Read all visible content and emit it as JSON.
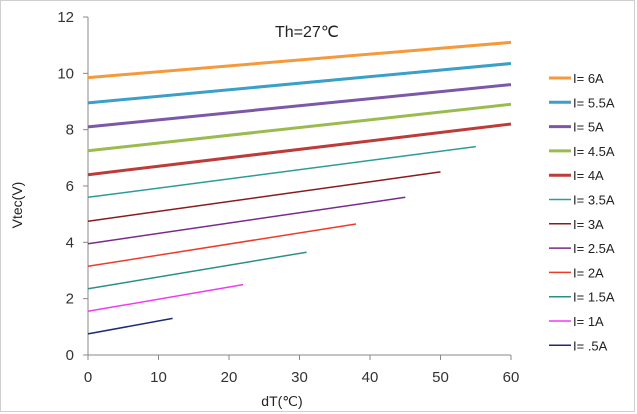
{
  "chart_data": {
    "type": "line",
    "title": "",
    "annotation": "Th=27℃",
    "xlabel": "dT(℃)",
    "ylabel": "Vtec(V)",
    "xlim": [
      0,
      60
    ],
    "ylim": [
      0,
      12
    ],
    "xticks": [
      "0",
      "10",
      "20",
      "30",
      "40",
      "50",
      "60"
    ],
    "yticks": [
      "0",
      "2",
      "4",
      "6",
      "8",
      "10",
      "12"
    ],
    "grid": false,
    "legend_position": "right",
    "series": [
      {
        "name": "I= 6A",
        "color": "#f59a3c",
        "width": 3,
        "x": [
          0,
          60
        ],
        "y": [
          9.85,
          11.1
        ]
      },
      {
        "name": "I= 5.5A",
        "color": "#3aa0c8",
        "width": 3,
        "x": [
          0,
          60
        ],
        "y": [
          8.95,
          10.35
        ]
      },
      {
        "name": "I= 5A",
        "color": "#7e57a6",
        "width": 3,
        "x": [
          0,
          60
        ],
        "y": [
          8.1,
          9.6
        ]
      },
      {
        "name": "I= 4.5A",
        "color": "#9bbb4e",
        "width": 3,
        "x": [
          0,
          60
        ],
        "y": [
          7.25,
          8.9
        ]
      },
      {
        "name": "I= 4A",
        "color": "#bd3b38",
        "width": 3,
        "x": [
          0,
          60
        ],
        "y": [
          6.4,
          8.2
        ]
      },
      {
        "name": "I= 3.5A",
        "color": "#2a9d9a",
        "width": 1.5,
        "x": [
          0,
          55
        ],
        "y": [
          5.6,
          7.4
        ]
      },
      {
        "name": "I= 3A",
        "color": "#8b1a1a",
        "width": 1.5,
        "x": [
          0,
          50
        ],
        "y": [
          4.75,
          6.5
        ]
      },
      {
        "name": "I= 2.5A",
        "color": "#7a2a8c",
        "width": 1.5,
        "x": [
          0,
          45
        ],
        "y": [
          3.95,
          5.6
        ]
      },
      {
        "name": "I= 2A",
        "color": "#ef3a2a",
        "width": 1.5,
        "x": [
          0,
          38
        ],
        "y": [
          3.15,
          4.65
        ]
      },
      {
        "name": "I= 1.5A",
        "color": "#2a8f87",
        "width": 1.5,
        "x": [
          0,
          31
        ],
        "y": [
          2.35,
          3.65
        ]
      },
      {
        "name": "I= 1A",
        "color": "#f03cf0",
        "width": 1.5,
        "x": [
          0,
          22
        ],
        "y": [
          1.55,
          2.5
        ]
      },
      {
        "name": "I= .5A",
        "color": "#1f2a7a",
        "width": 1.5,
        "x": [
          0,
          12
        ],
        "y": [
          0.75,
          1.3
        ]
      }
    ]
  }
}
